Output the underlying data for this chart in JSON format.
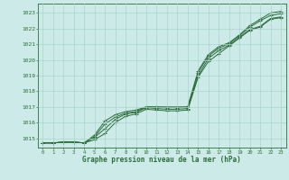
{
  "title": "Graphe pression niveau de la mer (hPa)",
  "xlabel_hours": [
    0,
    1,
    2,
    3,
    4,
    5,
    6,
    7,
    8,
    9,
    10,
    11,
    12,
    13,
    14,
    15,
    16,
    17,
    18,
    19,
    20,
    21,
    22,
    23
  ],
  "ylim": [
    1014.4,
    1023.6
  ],
  "yticks": [
    1015,
    1016,
    1017,
    1018,
    1019,
    1020,
    1021,
    1022,
    1023
  ],
  "bg_color": "#cceae7",
  "grid_color": "#aad4cf",
  "line_color": "#2d6b3c",
  "line1": [
    1014.7,
    1014.7,
    1014.75,
    1014.75,
    1014.7,
    1014.9,
    1015.3,
    1016.0,
    1016.4,
    1016.55,
    1016.85,
    1016.8,
    1016.75,
    1016.75,
    1016.8,
    1018.9,
    1019.9,
    1020.4,
    1020.9,
    1021.4,
    1021.9,
    1022.1,
    1022.6,
    1022.7
  ],
  "line2": [
    1014.7,
    1014.7,
    1014.75,
    1014.75,
    1014.7,
    1015.05,
    1015.6,
    1016.2,
    1016.55,
    1016.65,
    1016.95,
    1016.9,
    1016.85,
    1016.85,
    1016.9,
    1019.0,
    1020.1,
    1020.6,
    1020.95,
    1021.45,
    1021.95,
    1022.15,
    1022.65,
    1022.75
  ],
  "line3": [
    1014.7,
    1014.7,
    1014.75,
    1014.75,
    1014.7,
    1015.1,
    1015.9,
    1016.35,
    1016.6,
    1016.7,
    1017.0,
    1017.0,
    1016.95,
    1016.95,
    1017.0,
    1019.2,
    1020.25,
    1020.75,
    1021.05,
    1021.55,
    1022.1,
    1022.5,
    1022.85,
    1022.95
  ],
  "line4": [
    1014.7,
    1014.7,
    1014.75,
    1014.75,
    1014.7,
    1015.2,
    1016.1,
    1016.5,
    1016.7,
    1016.8,
    1017.0,
    1017.0,
    1017.0,
    1017.0,
    1017.0,
    1019.3,
    1020.35,
    1020.85,
    1021.1,
    1021.6,
    1022.2,
    1022.6,
    1023.0,
    1023.1
  ]
}
